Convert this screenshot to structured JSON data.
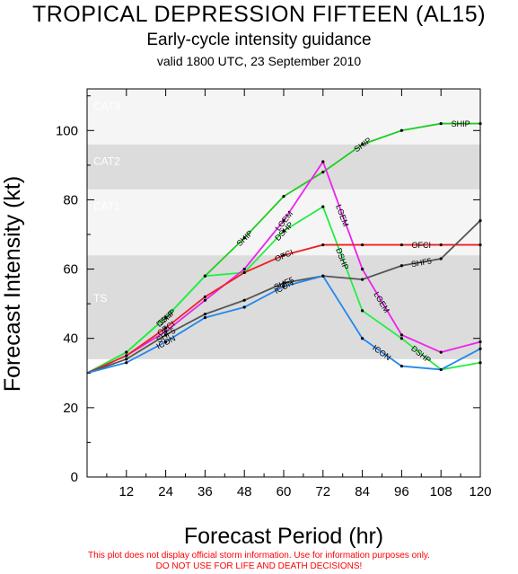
{
  "header": {
    "title": "TROPICAL DEPRESSION FIFTEEN (AL15)",
    "subtitle": "Early-cycle intensity guidance",
    "valid": "valid 1800 UTC, 23 September 2010"
  },
  "disclaimer": {
    "line1": "This plot does not display official storm information. Use for information purposes only.",
    "line2": "DO NOT USE FOR LIFE AND DEATH DECISIONS!"
  },
  "colors": {
    "band_dark": "#dcdcdc",
    "band_light": "#f5f5f5",
    "band_label": "#ffffff"
  },
  "chart_data": {
    "type": "line",
    "xlabel": "Forecast Period (hr)",
    "ylabel": "Forecast Intensity (kt)",
    "xlim": [
      0,
      120
    ],
    "ylim": [
      0,
      112
    ],
    "xticks": [
      12,
      24,
      36,
      48,
      60,
      72,
      84,
      96,
      108,
      120
    ],
    "yticks": [
      0,
      20,
      40,
      60,
      80,
      100
    ],
    "bands": [
      {
        "label": "TS",
        "from": 34,
        "to": 64,
        "shade": "dark"
      },
      {
        "label": "CAT1",
        "from": 64,
        "to": 83,
        "shade": "light"
      },
      {
        "label": "CAT2",
        "from": 83,
        "to": 96,
        "shade": "dark"
      },
      {
        "label": "CAT3",
        "from": 96,
        "to": 112,
        "shade": "light"
      }
    ],
    "series": [
      {
        "name": "SHIP",
        "color": "#22cc22",
        "x": [
          0,
          12,
          24,
          36,
          48,
          60,
          72,
          84,
          96,
          108,
          120
        ],
        "y": [
          30,
          36,
          46,
          58,
          69,
          81,
          88,
          96,
          100,
          102,
          102
        ],
        "labels": [
          {
            "text": "SHIP",
            "x": 24
          },
          {
            "text": "SHIP",
            "x": 48
          },
          {
            "text": "SHIP",
            "x": 84
          },
          {
            "text": "SHIP",
            "x": 114
          }
        ]
      },
      {
        "name": "DSHP",
        "color": "#22ee44",
        "x": [
          0,
          12,
          24,
          36,
          48,
          60,
          72,
          84,
          96,
          108,
          120
        ],
        "y": [
          30,
          36,
          46,
          58,
          59,
          71,
          78,
          48,
          40,
          31,
          33
        ],
        "labels": [
          {
            "text": "DSHP",
            "x": 24
          },
          {
            "text": "DSHP",
            "x": 60
          },
          {
            "text": "DSHP",
            "x": 78
          },
          {
            "text": "DSHP",
            "x": 102
          }
        ]
      },
      {
        "name": "LGEM",
        "color": "#ee22ee",
        "x": [
          0,
          12,
          24,
          36,
          48,
          60,
          72,
          84,
          96,
          108,
          120
        ],
        "y": [
          30,
          35,
          42,
          51,
          60,
          74,
          91,
          60,
          41,
          36,
          39
        ],
        "labels": [
          {
            "text": "LGEM",
            "x": 60
          },
          {
            "text": "LGEM",
            "x": 78
          },
          {
            "text": "LGEM",
            "x": 90
          }
        ]
      },
      {
        "name": "OFCI",
        "color": "#ee2222",
        "x": [
          0,
          12,
          24,
          36,
          48,
          60,
          72,
          84,
          96,
          108,
          120
        ],
        "y": [
          30,
          35,
          43,
          52,
          59,
          64,
          67,
          67,
          67,
          67,
          67
        ],
        "labels": [
          {
            "text": "OFCI",
            "x": 24
          },
          {
            "text": "OFCI",
            "x": 60
          },
          {
            "text": "OFCI",
            "x": 102
          }
        ]
      },
      {
        "name": "SHF5",
        "color": "#555555",
        "x": [
          0,
          12,
          24,
          36,
          48,
          60,
          72,
          84,
          96,
          108,
          120
        ],
        "y": [
          30,
          34,
          41,
          47,
          51,
          56,
          58,
          57,
          61,
          63,
          74
        ],
        "labels": [
          {
            "text": "SHF5",
            "x": 24
          },
          {
            "text": "SHF5",
            "x": 60
          },
          {
            "text": "SHF5",
            "x": 102
          }
        ]
      },
      {
        "name": "ICON",
        "color": "#2288ee",
        "x": [
          0,
          12,
          24,
          36,
          48,
          60,
          72,
          84,
          96,
          108,
          120
        ],
        "y": [
          30,
          33,
          39,
          46,
          49,
          55,
          58,
          40,
          32,
          31,
          37
        ],
        "labels": [
          {
            "text": "ICON",
            "x": 24
          },
          {
            "text": "ICON",
            "x": 60
          },
          {
            "text": "ICON",
            "x": 90
          }
        ]
      }
    ]
  }
}
